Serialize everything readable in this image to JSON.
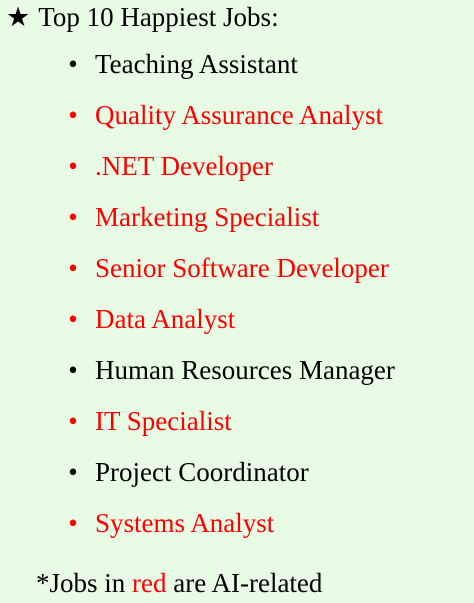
{
  "heading": {
    "icon": "star-icon",
    "text": "Top 10 Happiest Jobs:"
  },
  "colors": {
    "background": "#e8fbe4",
    "ai_related": "#ff0000",
    "default_text": "#000000"
  },
  "jobs": [
    {
      "label": "Teaching Assistant",
      "ai_related": false
    },
    {
      "label": "Quality Assurance Analyst",
      "ai_related": true
    },
    {
      "label": ".NET Developer",
      "ai_related": true
    },
    {
      "label": "Marketing Specialist",
      "ai_related": true
    },
    {
      "label": "Senior Software Developer",
      "ai_related": true
    },
    {
      "label": "Data Analyst",
      "ai_related": true
    },
    {
      "label": "Human Resources Manager",
      "ai_related": false
    },
    {
      "label": "IT Specialist",
      "ai_related": true
    },
    {
      "label": "Project Coordinator",
      "ai_related": false
    },
    {
      "label": "Systems Analyst",
      "ai_related": true
    }
  ],
  "footnote": {
    "prefix": "*Jobs in ",
    "highlight": "red",
    "suffix": " are AI-related"
  }
}
